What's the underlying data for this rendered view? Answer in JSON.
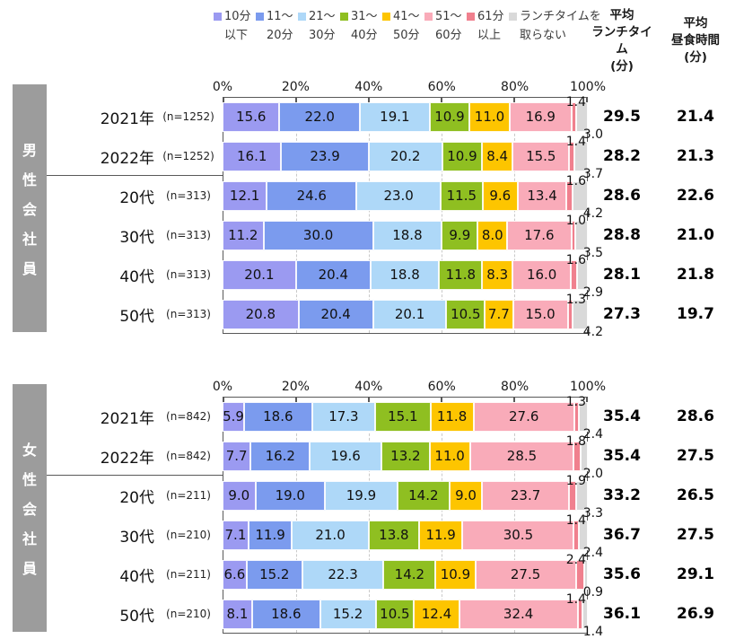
{
  "legend": {
    "items": [
      {
        "line1": "10分",
        "line2": "以下",
        "color": "#9b9af1"
      },
      {
        "line1": "11〜",
        "line2": "20分",
        "color": "#7b9bee"
      },
      {
        "line1": "21〜",
        "line2": "30分",
        "color": "#aed8f8"
      },
      {
        "line1": "31〜",
        "line2": "40分",
        "color": "#8fbf21"
      },
      {
        "line1": "41〜",
        "line2": "50分",
        "color": "#fdc500"
      },
      {
        "line1": "51〜",
        "line2": "60分",
        "color": "#f9abb9"
      },
      {
        "line1": "61分",
        "line2": "以上",
        "color": "#f0808e"
      },
      {
        "line1": "ランチタイムを",
        "line2": "取らない",
        "color": "#d9d9d9"
      }
    ]
  },
  "columns": {
    "avg_lunch_header_lines": [
      "平均",
      "ランチタイ",
      "ム",
      "(分)"
    ],
    "avg_meal_header_lines": [
      "平均",
      "昼食時間",
      "(分)"
    ]
  },
  "axis_ticks": [
    "0%",
    "20%",
    "40%",
    "60%",
    "80%",
    "100%"
  ],
  "chart_data": {
    "type": "bar",
    "orientation": "horizontal",
    "stacked": true,
    "unit": "%",
    "xlim": [
      0,
      100
    ],
    "x_ticks": [
      "0%",
      "20%",
      "40%",
      "60%",
      "80%",
      "100%"
    ],
    "grid": "dashed-vertical-every-20pct",
    "legend_position": "top",
    "segment_labels": [
      "10分以下",
      "11〜20分",
      "21〜30分",
      "31〜40分",
      "41〜50分",
      "51〜60分",
      "61分以上",
      "ランチタイムを取らない"
    ],
    "segment_colors": [
      "#9b9af1",
      "#7b9bee",
      "#aed8f8",
      "#8fbf21",
      "#fdc500",
      "#f9abb9",
      "#f0808e",
      "#d9d9d9"
    ],
    "right_columns": {
      "avg_lunch": "平均ランチタイム(分)",
      "avg_meal": "平均昼食時間(分)"
    },
    "groups": [
      {
        "title": "男性会社員",
        "rows": [
          {
            "label": "2021年",
            "n": "(n=1252)",
            "values": [
              15.6,
              22.0,
              19.1,
              10.9,
              11.0,
              16.9,
              1.4,
              3.0
            ],
            "avg_lunch": "29.5",
            "avg_meal": "21.4"
          },
          {
            "label": "2022年",
            "n": "(n=1252)",
            "values": [
              16.1,
              23.9,
              20.2,
              10.9,
              8.4,
              15.5,
              1.4,
              3.7
            ],
            "avg_lunch": "28.2",
            "avg_meal": "21.3"
          },
          {
            "label": "20代",
            "n": "(n=313)",
            "values": [
              12.1,
              24.6,
              23.0,
              11.5,
              9.6,
              13.4,
              1.6,
              4.2
            ],
            "avg_lunch": "28.6",
            "avg_meal": "22.6"
          },
          {
            "label": "30代",
            "n": "(n=313)",
            "values": [
              11.2,
              30.0,
              18.8,
              9.9,
              8.0,
              17.6,
              1.0,
              3.5
            ],
            "avg_lunch": "28.8",
            "avg_meal": "21.0"
          },
          {
            "label": "40代",
            "n": "(n=313)",
            "values": [
              20.1,
              20.4,
              18.8,
              11.8,
              8.3,
              16.0,
              1.6,
              2.9
            ],
            "avg_lunch": "28.1",
            "avg_meal": "21.8"
          },
          {
            "label": "50代",
            "n": "(n=313)",
            "values": [
              20.8,
              20.4,
              20.1,
              10.5,
              7.7,
              15.0,
              1.3,
              4.2
            ],
            "avg_lunch": "27.3",
            "avg_meal": "19.7"
          }
        ]
      },
      {
        "title": "女性会社員",
        "rows": [
          {
            "label": "2021年",
            "n": "(n=842)",
            "values": [
              5.9,
              18.6,
              17.3,
              15.1,
              11.8,
              27.6,
              1.3,
              2.4
            ],
            "avg_lunch": "35.4",
            "avg_meal": "28.6"
          },
          {
            "label": "2022年",
            "n": "(n=842)",
            "values": [
              7.7,
              16.2,
              19.6,
              13.2,
              11.0,
              28.5,
              1.8,
              2.0
            ],
            "avg_lunch": "35.4",
            "avg_meal": "27.5"
          },
          {
            "label": "20代",
            "n": "(n=211)",
            "values": [
              9.0,
              19.0,
              19.9,
              14.2,
              9.0,
              23.7,
              1.9,
              3.3
            ],
            "avg_lunch": "33.2",
            "avg_meal": "26.5"
          },
          {
            "label": "30代",
            "n": "(n=210)",
            "values": [
              7.1,
              11.9,
              21.0,
              13.8,
              11.9,
              30.5,
              1.4,
              2.4
            ],
            "avg_lunch": "36.7",
            "avg_meal": "27.5"
          },
          {
            "label": "40代",
            "n": "(n=211)",
            "values": [
              6.6,
              15.2,
              22.3,
              14.2,
              10.9,
              27.5,
              2.4,
              0.9
            ],
            "avg_lunch": "35.6",
            "avg_meal": "29.1"
          },
          {
            "label": "50代",
            "n": "(n=210)",
            "values": [
              8.1,
              18.6,
              15.2,
              10.5,
              12.4,
              32.4,
              1.4,
              1.4
            ],
            "avg_lunch": "36.1",
            "avg_meal": "26.9"
          }
        ]
      }
    ]
  }
}
